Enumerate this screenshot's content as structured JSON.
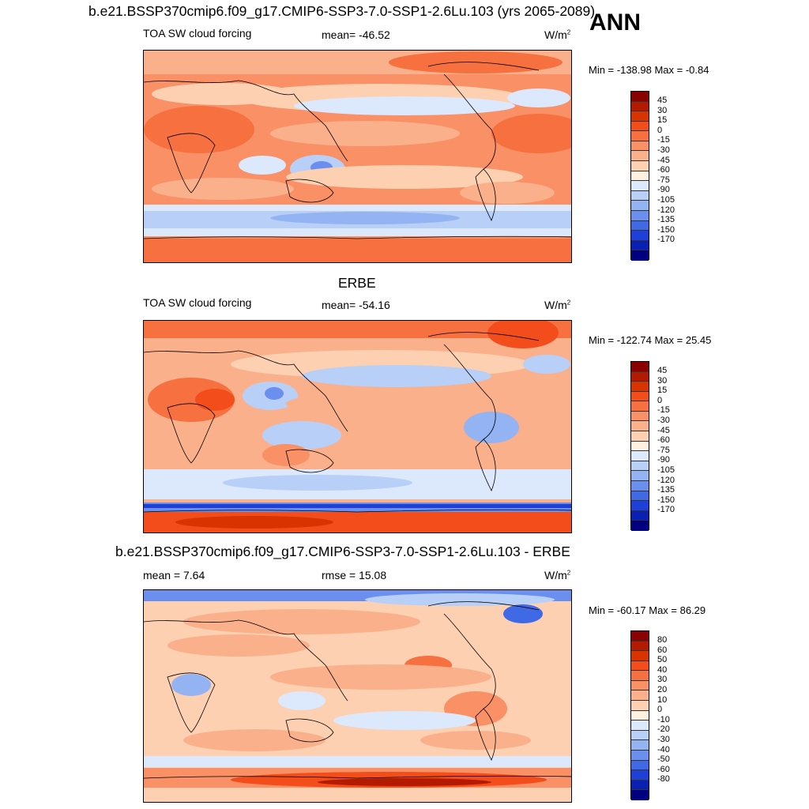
{
  "header": {
    "title": "b.e21.BSSP370cmip6.f09_g17.CMIP6-SSP3-7.0-SSP1-2.6Lu.103 (yrs 2065-2089)",
    "season": "ANN"
  },
  "panels": [
    {
      "field": "TOA SW cloud forcing",
      "stat": "mean= -46.52",
      "units": "W/m",
      "units_sup": "2",
      "minmax": "Min = -138.98 Max =  -0.84",
      "colorbar": {
        "labels": [
          "45",
          "30",
          "15",
          "0",
          "-15",
          "-30",
          "-45",
          "-60",
          "-75",
          "-90",
          "-105",
          "-120",
          "-135",
          "-150",
          "-170"
        ],
        "colors": [
          "#8b0000",
          "#b31a00",
          "#d93300",
          "#f24d1a",
          "#f77040",
          "#f99066",
          "#fbb08c",
          "#fdd0b2",
          "#fff0e0",
          "#dce8fb",
          "#b8cff7",
          "#94b3f2",
          "#6b8fee",
          "#4069e6",
          "#1f3fd9",
          "#0a1fb3",
          "#000080"
        ]
      }
    },
    {
      "section_title": "ERBE",
      "field": "TOA SW cloud forcing",
      "stat": "mean= -54.16",
      "units": "W/m",
      "units_sup": "2",
      "minmax": "Min = -122.74 Max =  25.45",
      "colorbar": {
        "labels": [
          "45",
          "30",
          "15",
          "0",
          "-15",
          "-30",
          "-45",
          "-60",
          "-75",
          "-90",
          "-105",
          "-120",
          "-135",
          "-150",
          "-170"
        ],
        "colors": [
          "#8b0000",
          "#b31a00",
          "#d93300",
          "#f24d1a",
          "#f77040",
          "#f99066",
          "#fbb08c",
          "#fdd0b2",
          "#fff0e0",
          "#dce8fb",
          "#b8cff7",
          "#94b3f2",
          "#6b8fee",
          "#4069e6",
          "#1f3fd9",
          "#0a1fb3",
          "#000080"
        ]
      }
    },
    {
      "section_title": "b.e21.BSSP370cmip6.f09_g17.CMIP6-SSP3-7.0-SSP1-2.6Lu.103 - ERBE",
      "mean": "mean =   7.64",
      "stat": "rmse =  15.08",
      "units": "W/m",
      "units_sup": "2",
      "minmax": "Min = -60.17 Max =  86.29",
      "colorbar": {
        "labels": [
          "80",
          "60",
          "50",
          "40",
          "30",
          "20",
          "10",
          "0",
          "-10",
          "-20",
          "-30",
          "-40",
          "-50",
          "-60",
          "-80"
        ],
        "colors": [
          "#8b0000",
          "#b31a00",
          "#d93300",
          "#f24d1a",
          "#f77040",
          "#f99066",
          "#fbb08c",
          "#fdd0b2",
          "#fff0e0",
          "#dce8fb",
          "#b8cff7",
          "#94b3f2",
          "#6b8fee",
          "#4069e6",
          "#1f3fd9",
          "#0a1fb3",
          "#000080"
        ]
      }
    }
  ]
}
